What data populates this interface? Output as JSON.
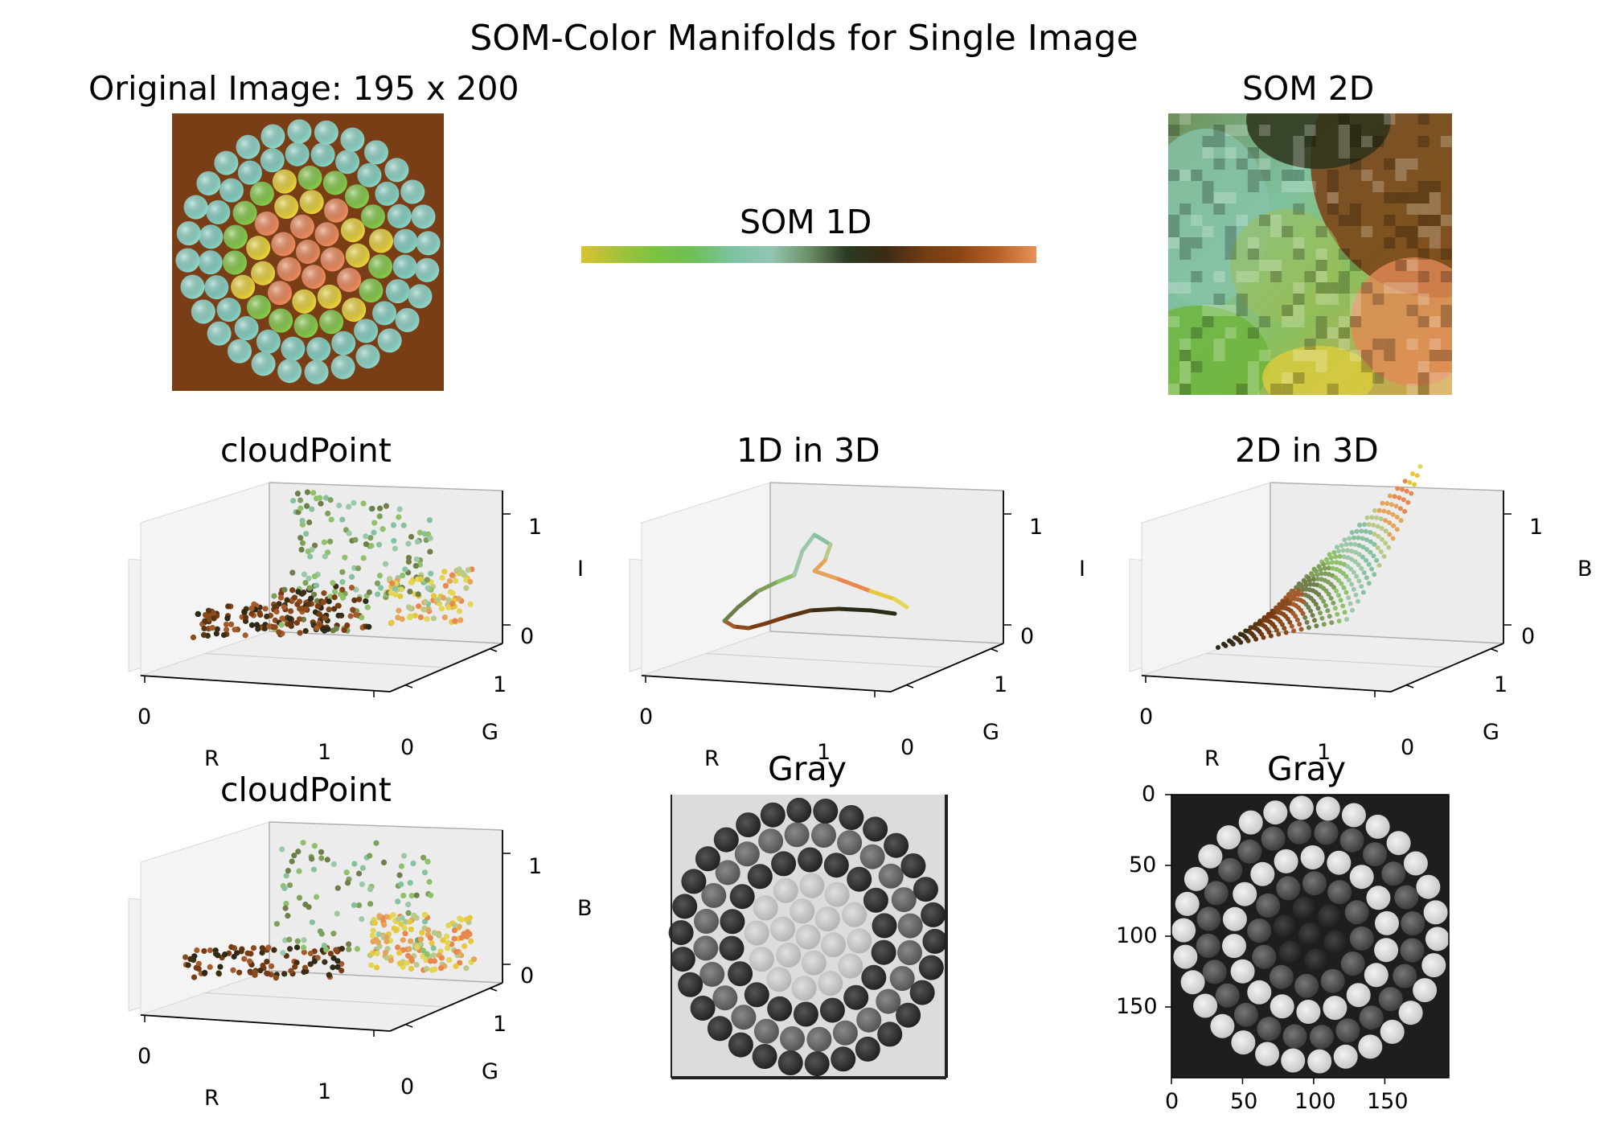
{
  "figure": {
    "title": "SOM-Color Manifolds for Single Image"
  },
  "panels": {
    "original": {
      "title": "Original Image: 195 x 200"
    },
    "som1d": {
      "title": "SOM 1D",
      "gradient": [
        "#d9c32e",
        "#a3c23a",
        "#7ac241",
        "#6fbf5a",
        "#7dc2a3",
        "#93c6b2",
        "#6c8f66",
        "#2b3a22",
        "#3b2a14",
        "#6e3c14",
        "#8c4514",
        "#b8622a",
        "#e8915a"
      ]
    },
    "som2d": {
      "title": "SOM 2D"
    },
    "cloud1": {
      "title": "cloudPoint",
      "xlabel": "R",
      "ylabel": "G",
      "zlabel": "I",
      "xticks": [
        "0",
        "1"
      ],
      "yticks": [
        "0",
        "1"
      ],
      "zticks": [
        "0",
        "1"
      ]
    },
    "line3d": {
      "title": "1D in 3D",
      "xlabel": "R",
      "ylabel": "G",
      "zlabel": "I",
      "xticks": [
        "0",
        "1"
      ],
      "yticks": [
        "0",
        "1"
      ],
      "zticks": [
        "0",
        "1"
      ]
    },
    "grid3d": {
      "title": "2D in 3D",
      "xlabel": "R",
      "ylabel": "G",
      "zlabel": "B",
      "xticks": [
        "0",
        "1"
      ],
      "yticks": [
        "0",
        "1"
      ],
      "zticks": [
        "0",
        "1"
      ]
    },
    "cloud2": {
      "title": "cloudPoint",
      "xlabel": "R",
      "ylabel": "G",
      "zlabel": "B",
      "xticks": [
        "0",
        "1"
      ],
      "yticks": [
        "0",
        "1"
      ],
      "zticks": [
        "0",
        "1"
      ]
    },
    "gray1": {
      "title": "Gray"
    },
    "gray2": {
      "title": "Gray",
      "xticks": [
        "0",
        "50",
        "100",
        "150"
      ],
      "yticks": [
        "0",
        "50",
        "100",
        "150"
      ]
    }
  },
  "chart_data": [
    {
      "type": "image",
      "title": "Original Image: 195 x 200",
      "width": 195,
      "height": 200
    },
    {
      "type": "heatmap",
      "title": "SOM 1D",
      "note": "1-D color strip"
    },
    {
      "type": "heatmap",
      "title": "SOM 2D",
      "note": "2-D color map"
    },
    {
      "type": "scatter",
      "title": "cloudPoint",
      "xlabel": "R",
      "ylabel": "G",
      "zlabel": "I",
      "xlim": [
        0,
        1
      ],
      "ylim": [
        0,
        1
      ],
      "zlim": [
        0,
        1
      ]
    },
    {
      "type": "line",
      "title": "1D in 3D",
      "xlabel": "R",
      "ylabel": "G",
      "zlabel": "I",
      "xlim": [
        0,
        1
      ],
      "ylim": [
        0,
        1
      ],
      "zlim": [
        0,
        1
      ]
    },
    {
      "type": "scatter",
      "title": "2D in 3D",
      "xlabel": "R",
      "ylabel": "G",
      "zlabel": "B",
      "xlim": [
        0,
        1
      ],
      "ylim": [
        0,
        1
      ],
      "zlim": [
        0,
        1
      ]
    },
    {
      "type": "scatter",
      "title": "cloudPoint",
      "xlabel": "R",
      "ylabel": "G",
      "zlabel": "B",
      "xlim": [
        0,
        1
      ],
      "ylim": [
        0,
        1
      ],
      "zlim": [
        0,
        1
      ]
    },
    {
      "type": "heatmap",
      "title": "Gray"
    },
    {
      "type": "heatmap",
      "title": "Gray",
      "xticks": [
        0,
        50,
        100,
        150
      ],
      "yticks": [
        0,
        50,
        100,
        150
      ],
      "xlim": [
        0,
        195
      ],
      "ylim": [
        200,
        0
      ]
    }
  ]
}
